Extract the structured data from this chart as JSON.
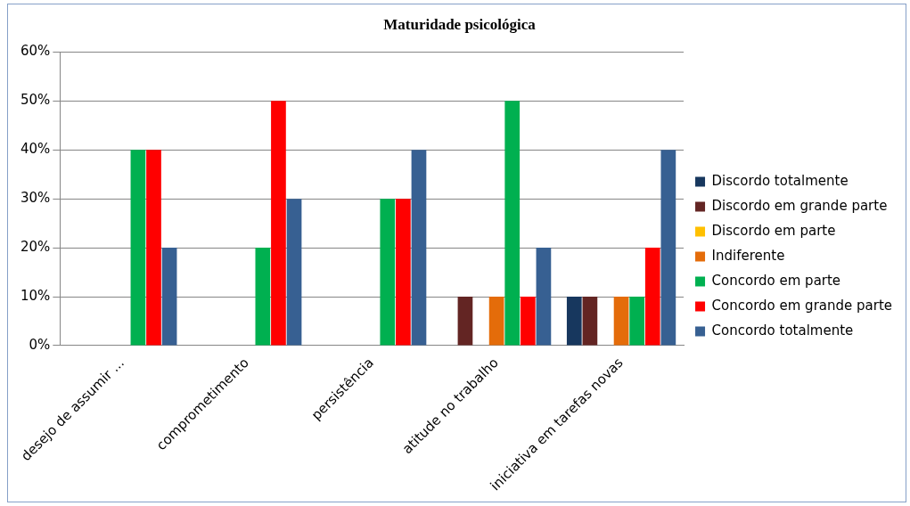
{
  "chart_data": {
    "type": "bar",
    "title": "Maturidade psicológica",
    "categories": [
      "desejo de assumir ...",
      "comprometimento",
      "persistência",
      "atitude no trabalho",
      "iniciativa em tarefas novas"
    ],
    "series": [
      {
        "name": "Discordo totalmente",
        "color": "#17375e",
        "values": [
          0,
          0,
          0,
          0,
          10
        ]
      },
      {
        "name": "Discordo em grande parte",
        "color": "#632523",
        "values": [
          0,
          0,
          0,
          10,
          10
        ]
      },
      {
        "name": "Discordo em parte",
        "color": "#ffc000",
        "values": [
          0,
          0,
          0,
          0,
          0
        ]
      },
      {
        "name": "Indiferente",
        "color": "#e46c0a",
        "values": [
          0,
          0,
          0,
          10,
          10
        ]
      },
      {
        "name": "Concordo em parte",
        "color": "#00b050",
        "values": [
          40,
          20,
          30,
          50,
          10
        ]
      },
      {
        "name": "Concordo em grande parte",
        "color": "#ff0000",
        "values": [
          40,
          50,
          30,
          10,
          20
        ]
      },
      {
        "name": "Concordo totalmente",
        "color": "#376092",
        "values": [
          20,
          30,
          40,
          20,
          40
        ]
      }
    ],
    "ylim": [
      0,
      60
    ],
    "yticks": [
      {
        "value": 0,
        "label": "0%"
      },
      {
        "value": 10,
        "label": "10%"
      },
      {
        "value": 20,
        "label": "20%"
      },
      {
        "value": 30,
        "label": "30%"
      },
      {
        "value": 40,
        "label": "40%"
      },
      {
        "value": 50,
        "label": "50%"
      },
      {
        "value": 60,
        "label": "60%"
      }
    ],
    "grid": "y",
    "legend": "right"
  }
}
